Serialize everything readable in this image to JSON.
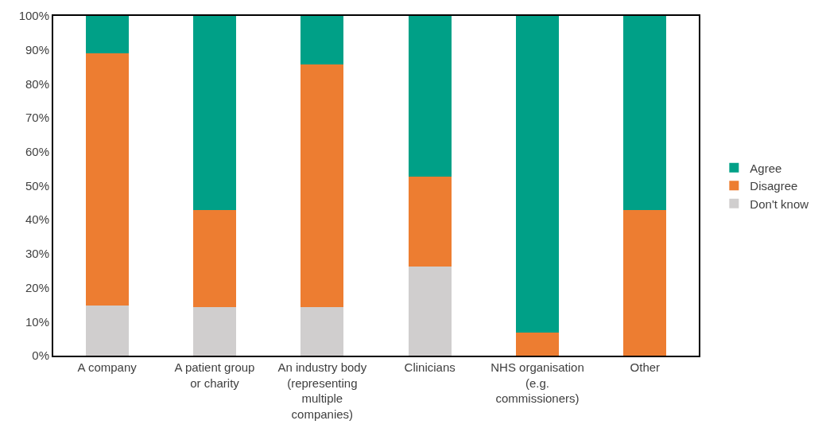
{
  "chart_data": {
    "type": "bar",
    "stacked": true,
    "categories": [
      "A company",
      "A patient group or charity",
      "An industry body (representing multiple companies)",
      "Clinicians",
      "NHS organisation (e.g. commissioners)",
      "Other"
    ],
    "series": [
      {
        "name": "Don't know",
        "color": "#d0cece",
        "values": [
          14.8,
          14.3,
          14.3,
          26.3,
          0,
          0
        ]
      },
      {
        "name": "Disagree",
        "color": "#ed7d31",
        "values": [
          74.1,
          28.6,
          71.4,
          26.3,
          6.7,
          42.9
        ]
      },
      {
        "name": "Agree",
        "color": "#00a087",
        "values": [
          11.1,
          57.1,
          14.3,
          47.4,
          93.3,
          57.1
        ]
      }
    ],
    "ylim": [
      0,
      100
    ],
    "yticks": [
      {
        "value": 0,
        "label": "0%"
      },
      {
        "value": 10,
        "label": "10%"
      },
      {
        "value": 20,
        "label": "20%"
      },
      {
        "value": 30,
        "label": "30%"
      },
      {
        "value": 40,
        "label": "40%"
      },
      {
        "value": 50,
        "label": "50%"
      },
      {
        "value": 60,
        "label": "60%"
      },
      {
        "value": 70,
        "label": "70%"
      },
      {
        "value": 80,
        "label": "80%"
      },
      {
        "value": 90,
        "label": "90%"
      },
      {
        "value": 100,
        "label": "100%"
      }
    ],
    "legend": "right"
  }
}
